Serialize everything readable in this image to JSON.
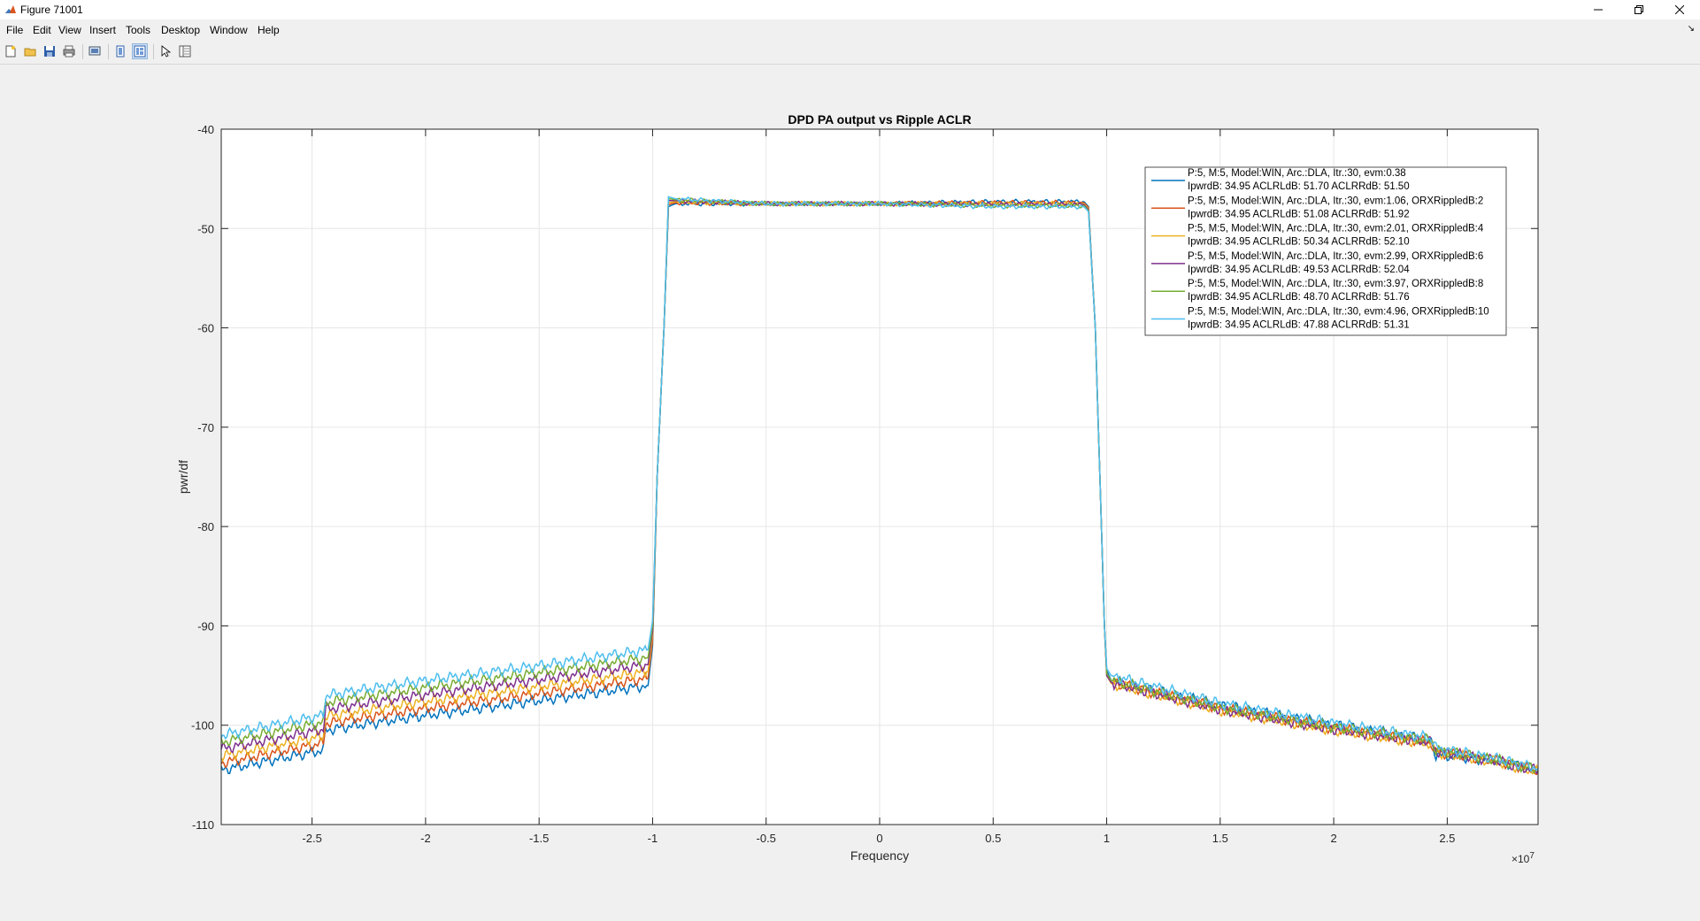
{
  "window": {
    "title": "Figure 71001",
    "controls": {
      "minimize": "minimize",
      "restore": "restore",
      "close": "close"
    }
  },
  "menu": {
    "items": [
      "File",
      "Edit",
      "View",
      "Insert",
      "Tools",
      "Desktop",
      "Window",
      "Help"
    ]
  },
  "toolbar": {
    "buttons": [
      {
        "name": "new-figure-icon"
      },
      {
        "name": "open-file-icon"
      },
      {
        "name": "save-icon"
      },
      {
        "name": "print-icon"
      },
      {
        "name": "print-preview-icon"
      },
      {
        "name": "hide-plot-tools-icon"
      },
      {
        "name": "show-plot-tools-icon",
        "pressed": true
      },
      {
        "name": "edit-plot-pointer-icon"
      },
      {
        "name": "property-inspector-icon"
      }
    ]
  },
  "chart_data": {
    "type": "line",
    "title": "DPD PA output vs Ripple ACLR",
    "xlabel": "Frequency",
    "ylabel": "pwr/df",
    "x_exponent_label": "×10",
    "x_exponent": "7",
    "xlim": [
      -2.9,
      2.9
    ],
    "ylim": [
      -110,
      -40
    ],
    "xticks": [
      -2.5,
      -2,
      -1.5,
      -1,
      -0.5,
      0,
      0.5,
      1,
      1.5,
      2,
      2.5
    ],
    "xtick_labels": [
      "-2.5",
      "-2",
      "-1.5",
      "-1",
      "-0.5",
      "0",
      "0.5",
      "1",
      "1.5",
      "2",
      "2.5"
    ],
    "yticks": [
      -110,
      -100,
      -90,
      -80,
      -70,
      -60,
      -50,
      -40
    ],
    "ytick_labels": [
      "-110",
      "-100",
      "-90",
      "-80",
      "-70",
      "-60",
      "-50",
      "-40"
    ],
    "grid": true,
    "legend_position": "top-right",
    "series": [
      {
        "color": "#0072BD",
        "legend_line1": "P:5, M:5, Model:WIN, Arc.:DLA, Itr.:30, evm:0.38",
        "legend_line2": "IpwrdB: 34.95 ACLRLdB: 51.70 ACLRRdB: 51.50",
        "x": [
          -2.9,
          -2.45,
          -2.44,
          -2.3,
          -2.0,
          -1.5,
          -1.02,
          -1.0,
          -0.98,
          -0.95,
          -0.93,
          -0.9,
          -0.5,
          0,
          0.5,
          0.9,
          0.92,
          0.95,
          0.97,
          0.99,
          1.0,
          1.02,
          1.5,
          2.0,
          2.43,
          2.45,
          2.7,
          2.9
        ],
        "y": [
          -104.5,
          -102.5,
          -100.5,
          -100,
          -99,
          -97.5,
          -96,
          -92,
          -75,
          -60,
          -47.8,
          -47.5,
          -47.5,
          -47.5,
          -47.3,
          -47.3,
          -47.8,
          -60,
          -75,
          -90,
          -94.5,
          -95.5,
          -98,
          -100,
          -101.5,
          -103,
          -103.5,
          -104.5
        ]
      },
      {
        "color": "#D95319",
        "legend_line1": "P:5, M:5, Model:WIN, Arc.:DLA, Itr.:30, evm:1.06, ORXRippledB:2",
        "legend_line2": "IpwrdB: 34.95 ACLRLdB: 51.08 ACLRRdB: 51.92",
        "x": [
          -2.9,
          -2.45,
          -2.44,
          -2.3,
          -2.0,
          -1.5,
          -1.02,
          -1.0,
          -0.98,
          -0.95,
          -0.93,
          -0.9,
          -0.5,
          0,
          0.5,
          0.9,
          0.92,
          0.95,
          0.97,
          0.99,
          1.0,
          1.02,
          1.5,
          2.0,
          2.43,
          2.45,
          2.7,
          2.9
        ],
        "y": [
          -103.8,
          -101.8,
          -99.8,
          -99.3,
          -98.3,
          -96.8,
          -95.3,
          -91.5,
          -75,
          -60,
          -47.6,
          -47.4,
          -47.5,
          -47.5,
          -47.4,
          -47.4,
          -47.9,
          -60,
          -75,
          -90,
          -94.8,
          -95.7,
          -98.3,
          -100.3,
          -101.8,
          -102.7,
          -103.5,
          -104.6
        ]
      },
      {
        "color": "#EDB120",
        "legend_line1": "P:5, M:5, Model:WIN, Arc.:DLA, Itr.:30, evm:2.01, ORXRippledB:4",
        "legend_line2": "IpwrdB: 34.95 ACLRLdB: 50.34 ACLRRdB: 52.10",
        "x": [
          -2.9,
          -2.45,
          -2.44,
          -2.3,
          -2.0,
          -1.5,
          -1.02,
          -1.0,
          -0.98,
          -0.95,
          -0.93,
          -0.9,
          -0.5,
          0,
          0.5,
          0.9,
          0.92,
          0.95,
          0.97,
          0.99,
          1.0,
          1.02,
          1.5,
          2.0,
          2.43,
          2.45,
          2.7,
          2.9
        ],
        "y": [
          -103.1,
          -101.1,
          -99.1,
          -98.6,
          -97.6,
          -96.1,
          -94.6,
          -91,
          -75,
          -60,
          -47.4,
          -47.3,
          -47.5,
          -47.5,
          -47.5,
          -47.5,
          -48,
          -60,
          -75,
          -90,
          -95,
          -95.8,
          -98.5,
          -100.5,
          -101.9,
          -102.7,
          -103.6,
          -104.7
        ]
      },
      {
        "color": "#7E2F8E",
        "legend_line1": "P:5, M:5, Model:WIN, Arc.:DLA, Itr.:30, evm:2.99, ORXRippledB:6",
        "legend_line2": "IpwrdB: 34.95 ACLRLdB: 49.53 ACLRRdB: 52.04",
        "x": [
          -2.9,
          -2.45,
          -2.44,
          -2.3,
          -2.0,
          -1.5,
          -1.02,
          -1.0,
          -0.98,
          -0.95,
          -0.93,
          -0.9,
          -0.5,
          0,
          0.5,
          0.9,
          0.92,
          0.95,
          0.97,
          0.99,
          1.0,
          1.02,
          1.5,
          2.0,
          2.43,
          2.45,
          2.7,
          2.9
        ],
        "y": [
          -102.4,
          -100.4,
          -98.4,
          -97.9,
          -96.9,
          -95.4,
          -93.9,
          -90.5,
          -75,
          -60,
          -47.2,
          -47.2,
          -47.5,
          -47.5,
          -47.6,
          -47.6,
          -48.1,
          -60,
          -75,
          -90,
          -95,
          -95.7,
          -98.4,
          -100.4,
          -101.7,
          -102.6,
          -103.5,
          -104.6
        ]
      },
      {
        "color": "#77AC30",
        "legend_line1": "P:5, M:5, Model:WIN, Arc.:DLA, Itr.:30, evm:3.97, ORXRippledB:8",
        "legend_line2": "IpwrdB: 34.95 ACLRLdB: 48.70 ACLRRdB: 51.76",
        "x": [
          -2.9,
          -2.45,
          -2.44,
          -2.3,
          -2.0,
          -1.5,
          -1.02,
          -1.0,
          -0.98,
          -0.95,
          -0.93,
          -0.9,
          -0.5,
          0,
          0.5,
          0.9,
          0.92,
          0.95,
          0.97,
          0.99,
          1.0,
          1.02,
          1.5,
          2.0,
          2.43,
          2.45,
          2.7,
          2.9
        ],
        "y": [
          -101.7,
          -99.7,
          -97.7,
          -97.2,
          -96.2,
          -94.7,
          -93.2,
          -90,
          -75,
          -60,
          -47,
          -47.1,
          -47.5,
          -47.5,
          -47.7,
          -47.7,
          -48.2,
          -60,
          -75,
          -90,
          -94.8,
          -95.5,
          -98.2,
          -100.2,
          -101.5,
          -102.5,
          -103.4,
          -104.5
        ]
      },
      {
        "color": "#4DBEEE",
        "legend_line1": "P:5, M:5, Model:WIN, Arc.:DLA, Itr.:30, evm:4.96, ORXRippledB:10",
        "legend_line2": "IpwrdB: 34.95 ACLRLdB: 47.88 ACLRRdB: 51.31",
        "x": [
          -2.9,
          -2.45,
          -2.44,
          -2.3,
          -2.0,
          -1.5,
          -1.02,
          -1.0,
          -0.98,
          -0.95,
          -0.93,
          -0.9,
          -0.5,
          0,
          0.5,
          0.9,
          0.92,
          0.95,
          0.97,
          0.99,
          1.0,
          1.02,
          1.5,
          2.0,
          2.43,
          2.45,
          2.7,
          2.9
        ],
        "y": [
          -101,
          -99,
          -97,
          -96.5,
          -95.5,
          -94,
          -92.4,
          -89.5,
          -75,
          -60,
          -46.8,
          -47,
          -47.5,
          -47.5,
          -47.8,
          -47.8,
          -48.3,
          -60,
          -75,
          -90,
          -94.3,
          -95,
          -97.8,
          -99.8,
          -101.3,
          -102.3,
          -103.3,
          -104.3
        ]
      }
    ]
  }
}
